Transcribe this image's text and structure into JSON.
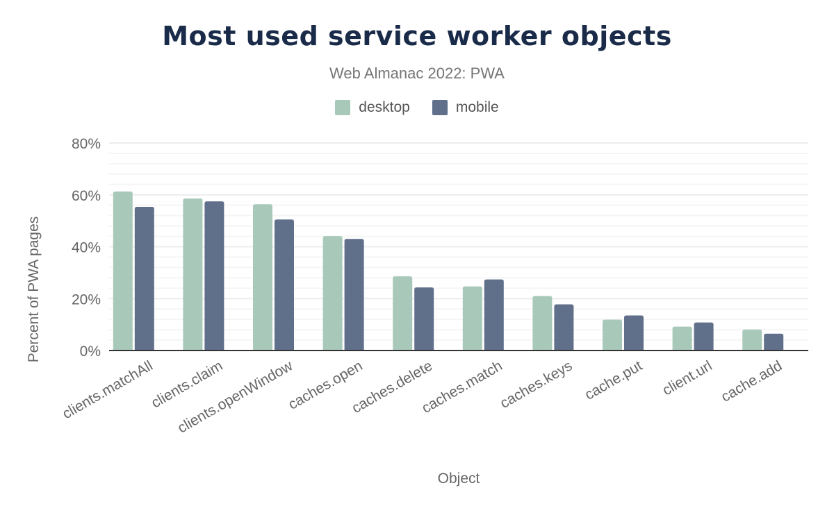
{
  "chart_data": {
    "type": "bar",
    "title": "Most used service worker objects",
    "subtitle": "Web Almanac 2022: PWA",
    "xlabel": "Object",
    "ylabel": "Percent of PWA pages",
    "ylim": [
      0,
      80
    ],
    "yticks": [
      "0%",
      "20%",
      "40%",
      "60%",
      "80%"
    ],
    "grid": true,
    "legend_position": "top",
    "categories": [
      "clients.matchAll",
      "clients.claim",
      "clients.openWindow",
      "caches.open",
      "caches.delete",
      "caches.match",
      "caches.keys",
      "cache.put",
      "client.url",
      "cache.add"
    ],
    "series": [
      {
        "name": "desktop",
        "color": "#a8c9b9",
        "values": [
          61.3,
          58.6,
          56.4,
          44.1,
          28.6,
          24.7,
          21.0,
          11.9,
          9.2,
          8.1
        ]
      },
      {
        "name": "mobile",
        "color": "#606f8a",
        "values": [
          55.4,
          57.5,
          50.5,
          43.0,
          24.3,
          27.4,
          17.8,
          13.5,
          10.8,
          6.5
        ]
      }
    ]
  }
}
